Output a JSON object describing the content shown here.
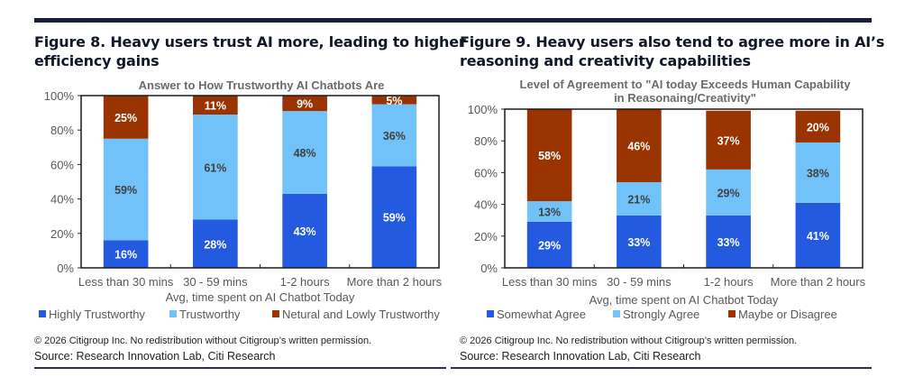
{
  "figures": [
    {
      "figure_title_line1": "Figure 8. Heavy users trust AI more, leading to higher",
      "figure_title_line2": "efficiency gains",
      "copyright": "© 2026 Citigroup Inc. No redistribution without Citigroup’s written permission.",
      "source": "Source: Research Innovation Lab, Citi Research"
    },
    {
      "figure_title_line1": "Figure 9. Heavy users also tend to agree more in AI’s",
      "figure_title_line2": "reasoning and creativity capabilities",
      "copyright": "© 2026 Citigroup Inc. No redistribution without Citigroup’s written permission.",
      "source": "Source: Research Innovation Lab, Citi Research"
    }
  ],
  "colors": {
    "dark_blue": "#245ae0",
    "light_blue": "#72c2fa",
    "brown": "#993300",
    "rule": "#172036"
  },
  "chart_data": [
    {
      "type": "bar",
      "stacked": true,
      "title": "Answer to How Trustworthy AI Chatbots Are",
      "xlabel": "Avg, time spent on AI Chatbot Today",
      "ylabel": "",
      "ylim": [
        0,
        100
      ],
      "yticks": [
        "0%",
        "20%",
        "40%",
        "60%",
        "80%",
        "100%"
      ],
      "categories": [
        "Less than 30 mins",
        "30 - 59 mins",
        "1-2 hours",
        "More than 2 hours"
      ],
      "series": [
        {
          "name": "Highly Trustworthy",
          "color": "#245ae0",
          "label_color": "#ffffff",
          "values": [
            16,
            28,
            43,
            59
          ]
        },
        {
          "name": "Trustworthy",
          "color": "#72c2fa",
          "label_color": "#404040",
          "values": [
            59,
            61,
            48,
            36
          ]
        },
        {
          "name": "Netural and Lowly Trustworthy",
          "color": "#993300",
          "label_color": "#ffffff",
          "values": [
            25,
            11,
            9,
            5
          ]
        }
      ],
      "legend": "bottom",
      "grid": false
    },
    {
      "type": "bar",
      "stacked": true,
      "title_line1": "Level of Agreement to \"AI today Exceeds Human Capability",
      "title_line2": "in Reasonaing/Creativity\"",
      "xlabel": "Avg, time spent on AI Chatbot Today",
      "ylabel": "",
      "ylim": [
        0,
        100
      ],
      "yticks": [
        "0%",
        "20%",
        "40%",
        "60%",
        "80%",
        "100%"
      ],
      "categories": [
        "Less than 30 mins",
        "30 - 59 mins",
        "1-2 hours",
        "More than 2 hours"
      ],
      "series": [
        {
          "name": "Somewhat Agree",
          "color": "#245ae0",
          "label_color": "#ffffff",
          "values": [
            29,
            33,
            33,
            41
          ]
        },
        {
          "name": "Strongly Agree",
          "color": "#72c2fa",
          "label_color": "#404040",
          "values": [
            13,
            21,
            29,
            38
          ]
        },
        {
          "name": "Maybe or Disagree",
          "color": "#993300",
          "label_color": "#ffffff",
          "values": [
            58,
            46,
            37,
            20
          ]
        }
      ],
      "legend": "bottom",
      "grid": false
    }
  ]
}
